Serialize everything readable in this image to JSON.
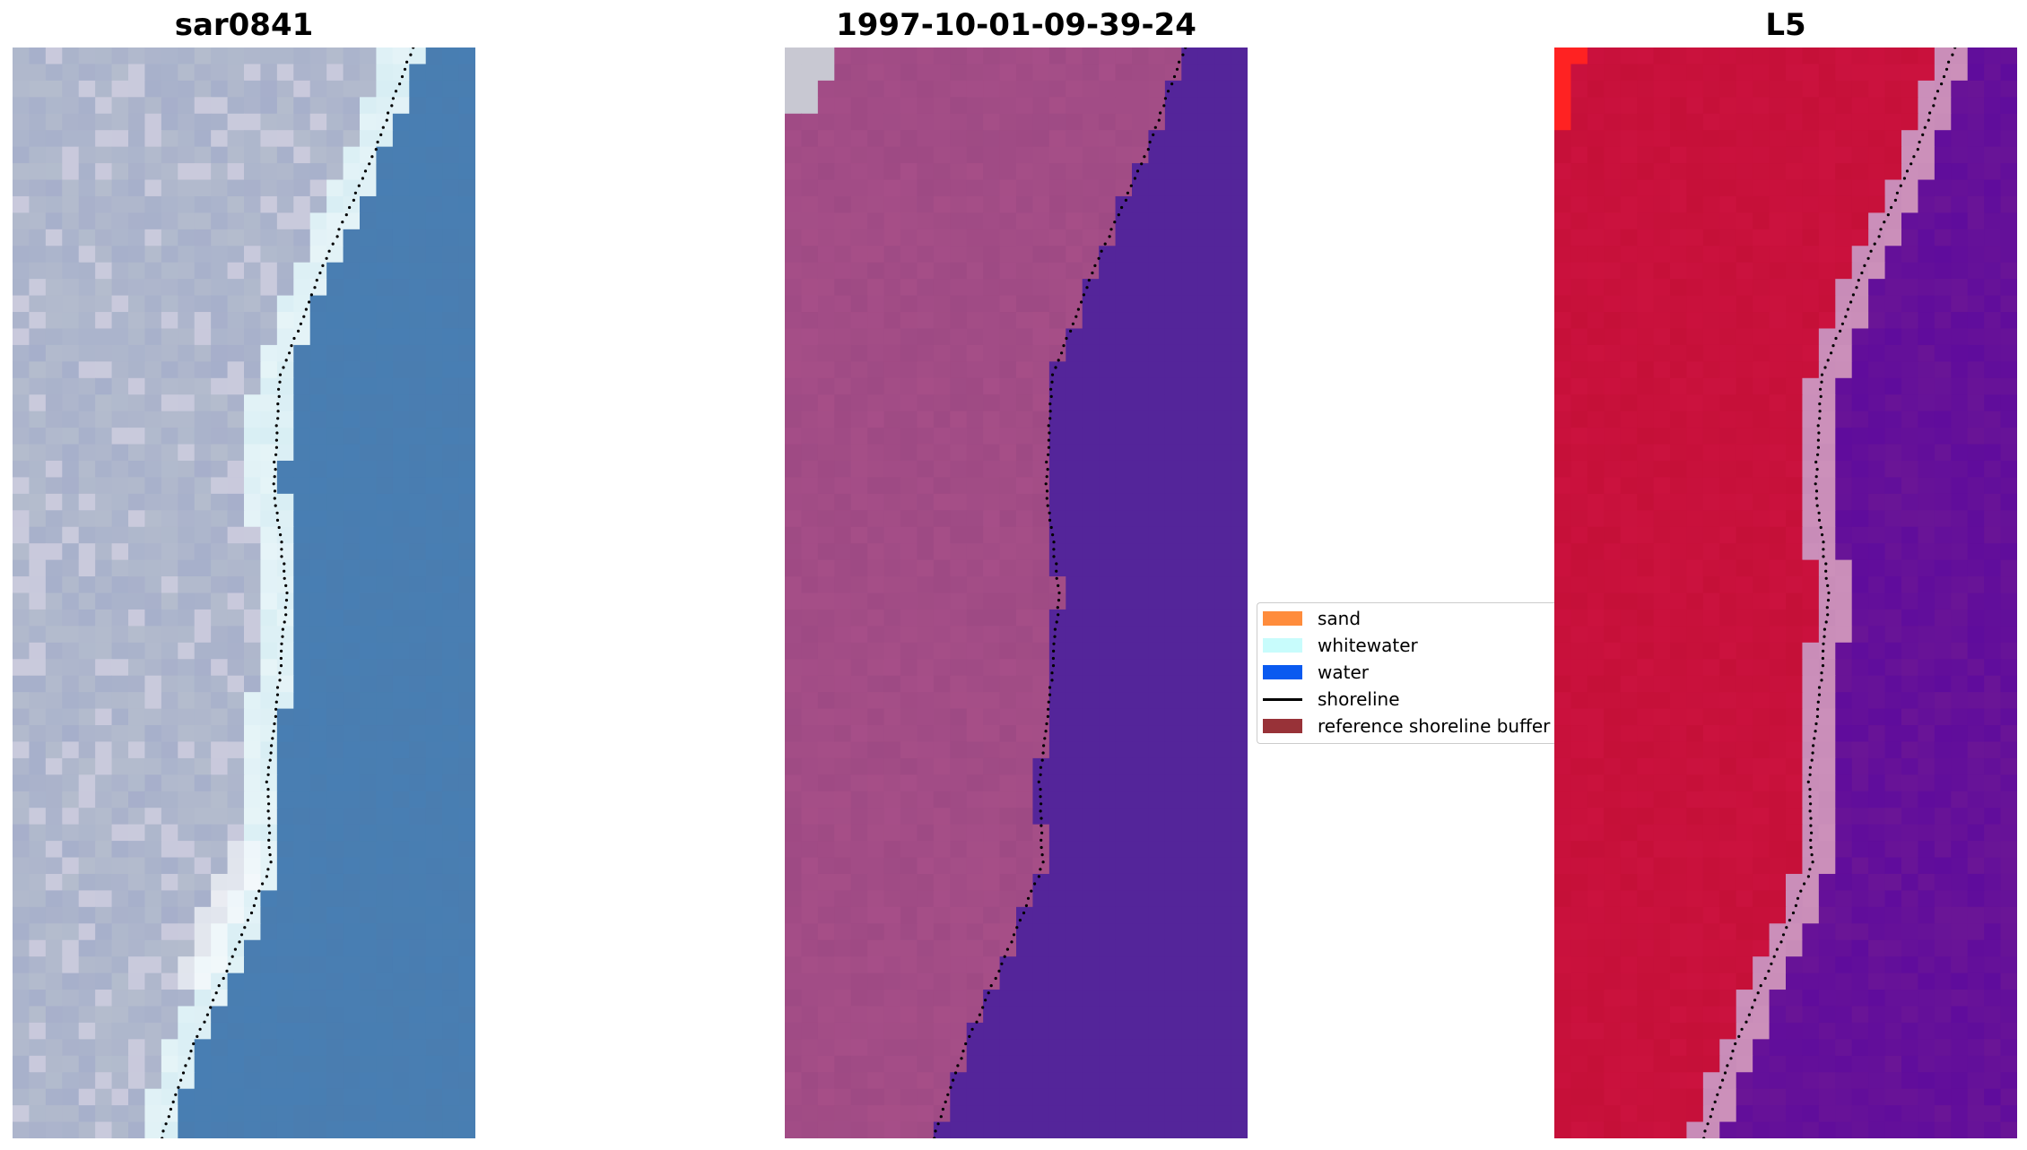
{
  "panels": [
    {
      "title": "sar0841",
      "kind": "rgb"
    },
    {
      "title": "1997-10-01-09-39-24",
      "kind": "classified"
    },
    {
      "title": "L5",
      "kind": "false_color"
    }
  ],
  "colors": {
    "rgb_land": "#b4bccd",
    "rgb_sea": "#4a7db0",
    "rgb_whitewater": "#d8eef4",
    "classified_land": "#9e4a84",
    "classified_water": "#54259a",
    "classified_corner": "#c8c8d2",
    "fc_land": "#c51038",
    "fc_water": "#6a1596",
    "fc_bright": "#ff2222",
    "fc_edge": "#c88cb8"
  },
  "legend": {
    "items": [
      {
        "label": "sand",
        "type": "patch",
        "color": "#ff8c3c"
      },
      {
        "label": "whitewater",
        "type": "patch",
        "color": "#c8fcfc"
      },
      {
        "label": "water",
        "type": "patch",
        "color": "#0a5af0"
      },
      {
        "label": "shoreline",
        "type": "line",
        "color": "#000000"
      },
      {
        "label": "reference shoreline buffer",
        "type": "patch",
        "color": "#983238"
      }
    ]
  }
}
